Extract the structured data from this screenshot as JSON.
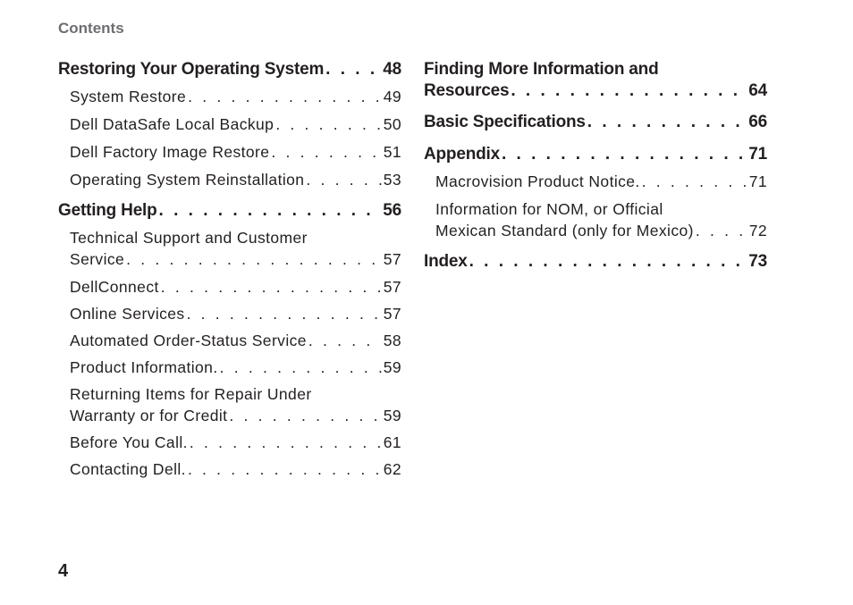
{
  "header": {
    "label": "Contents"
  },
  "left_column": {
    "sections": [
      {
        "title": "Restoring Your Operating System",
        "page": "48",
        "items": [
          {
            "lines": [
              "System Restore"
            ],
            "page": "49"
          },
          {
            "lines": [
              "Dell DataSafe Local Backup"
            ],
            "page": "50"
          },
          {
            "lines": [
              "Dell Factory Image Restore"
            ],
            "page": "51"
          },
          {
            "lines": [
              "Operating System Reinstallation"
            ],
            "page": "53"
          }
        ]
      },
      {
        "title": "Getting Help",
        "page": "56",
        "items": [
          {
            "lines": [
              "Technical Support and Customer",
              "Service"
            ],
            "page": "57"
          },
          {
            "lines": [
              "DellConnect"
            ],
            "page": "57"
          },
          {
            "lines": [
              "Online Services"
            ],
            "page": "57"
          },
          {
            "lines": [
              "Automated Order-Status Service"
            ],
            "page": "58"
          },
          {
            "lines": [
              "Product Information."
            ],
            "page": "59"
          },
          {
            "lines": [
              "Returning Items for Repair Under",
              "Warranty or for Credit"
            ],
            "page": "59"
          },
          {
            "lines": [
              "Before You Call."
            ],
            "page": "61"
          },
          {
            "lines": [
              "Contacting Dell."
            ],
            "page": "62"
          }
        ]
      }
    ]
  },
  "right_column": {
    "sections": [
      {
        "title_lines": [
          "Finding More Information and",
          "Resources"
        ],
        "page": "64",
        "items": []
      },
      {
        "title_lines": [
          "Basic Specifications"
        ],
        "page": "66",
        "items": []
      },
      {
        "title_lines": [
          "Appendix"
        ],
        "page": "71",
        "items": [
          {
            "lines": [
              "Macrovision Product Notice."
            ],
            "page": "71"
          },
          {
            "lines": [
              "Information for NOM, or Official",
              "Mexican Standard (only for Mexico)"
            ],
            "page": "72"
          }
        ]
      },
      {
        "title_lines": [
          "Index"
        ],
        "page": "73",
        "items": []
      }
    ]
  },
  "footer": {
    "page_number": "4"
  }
}
